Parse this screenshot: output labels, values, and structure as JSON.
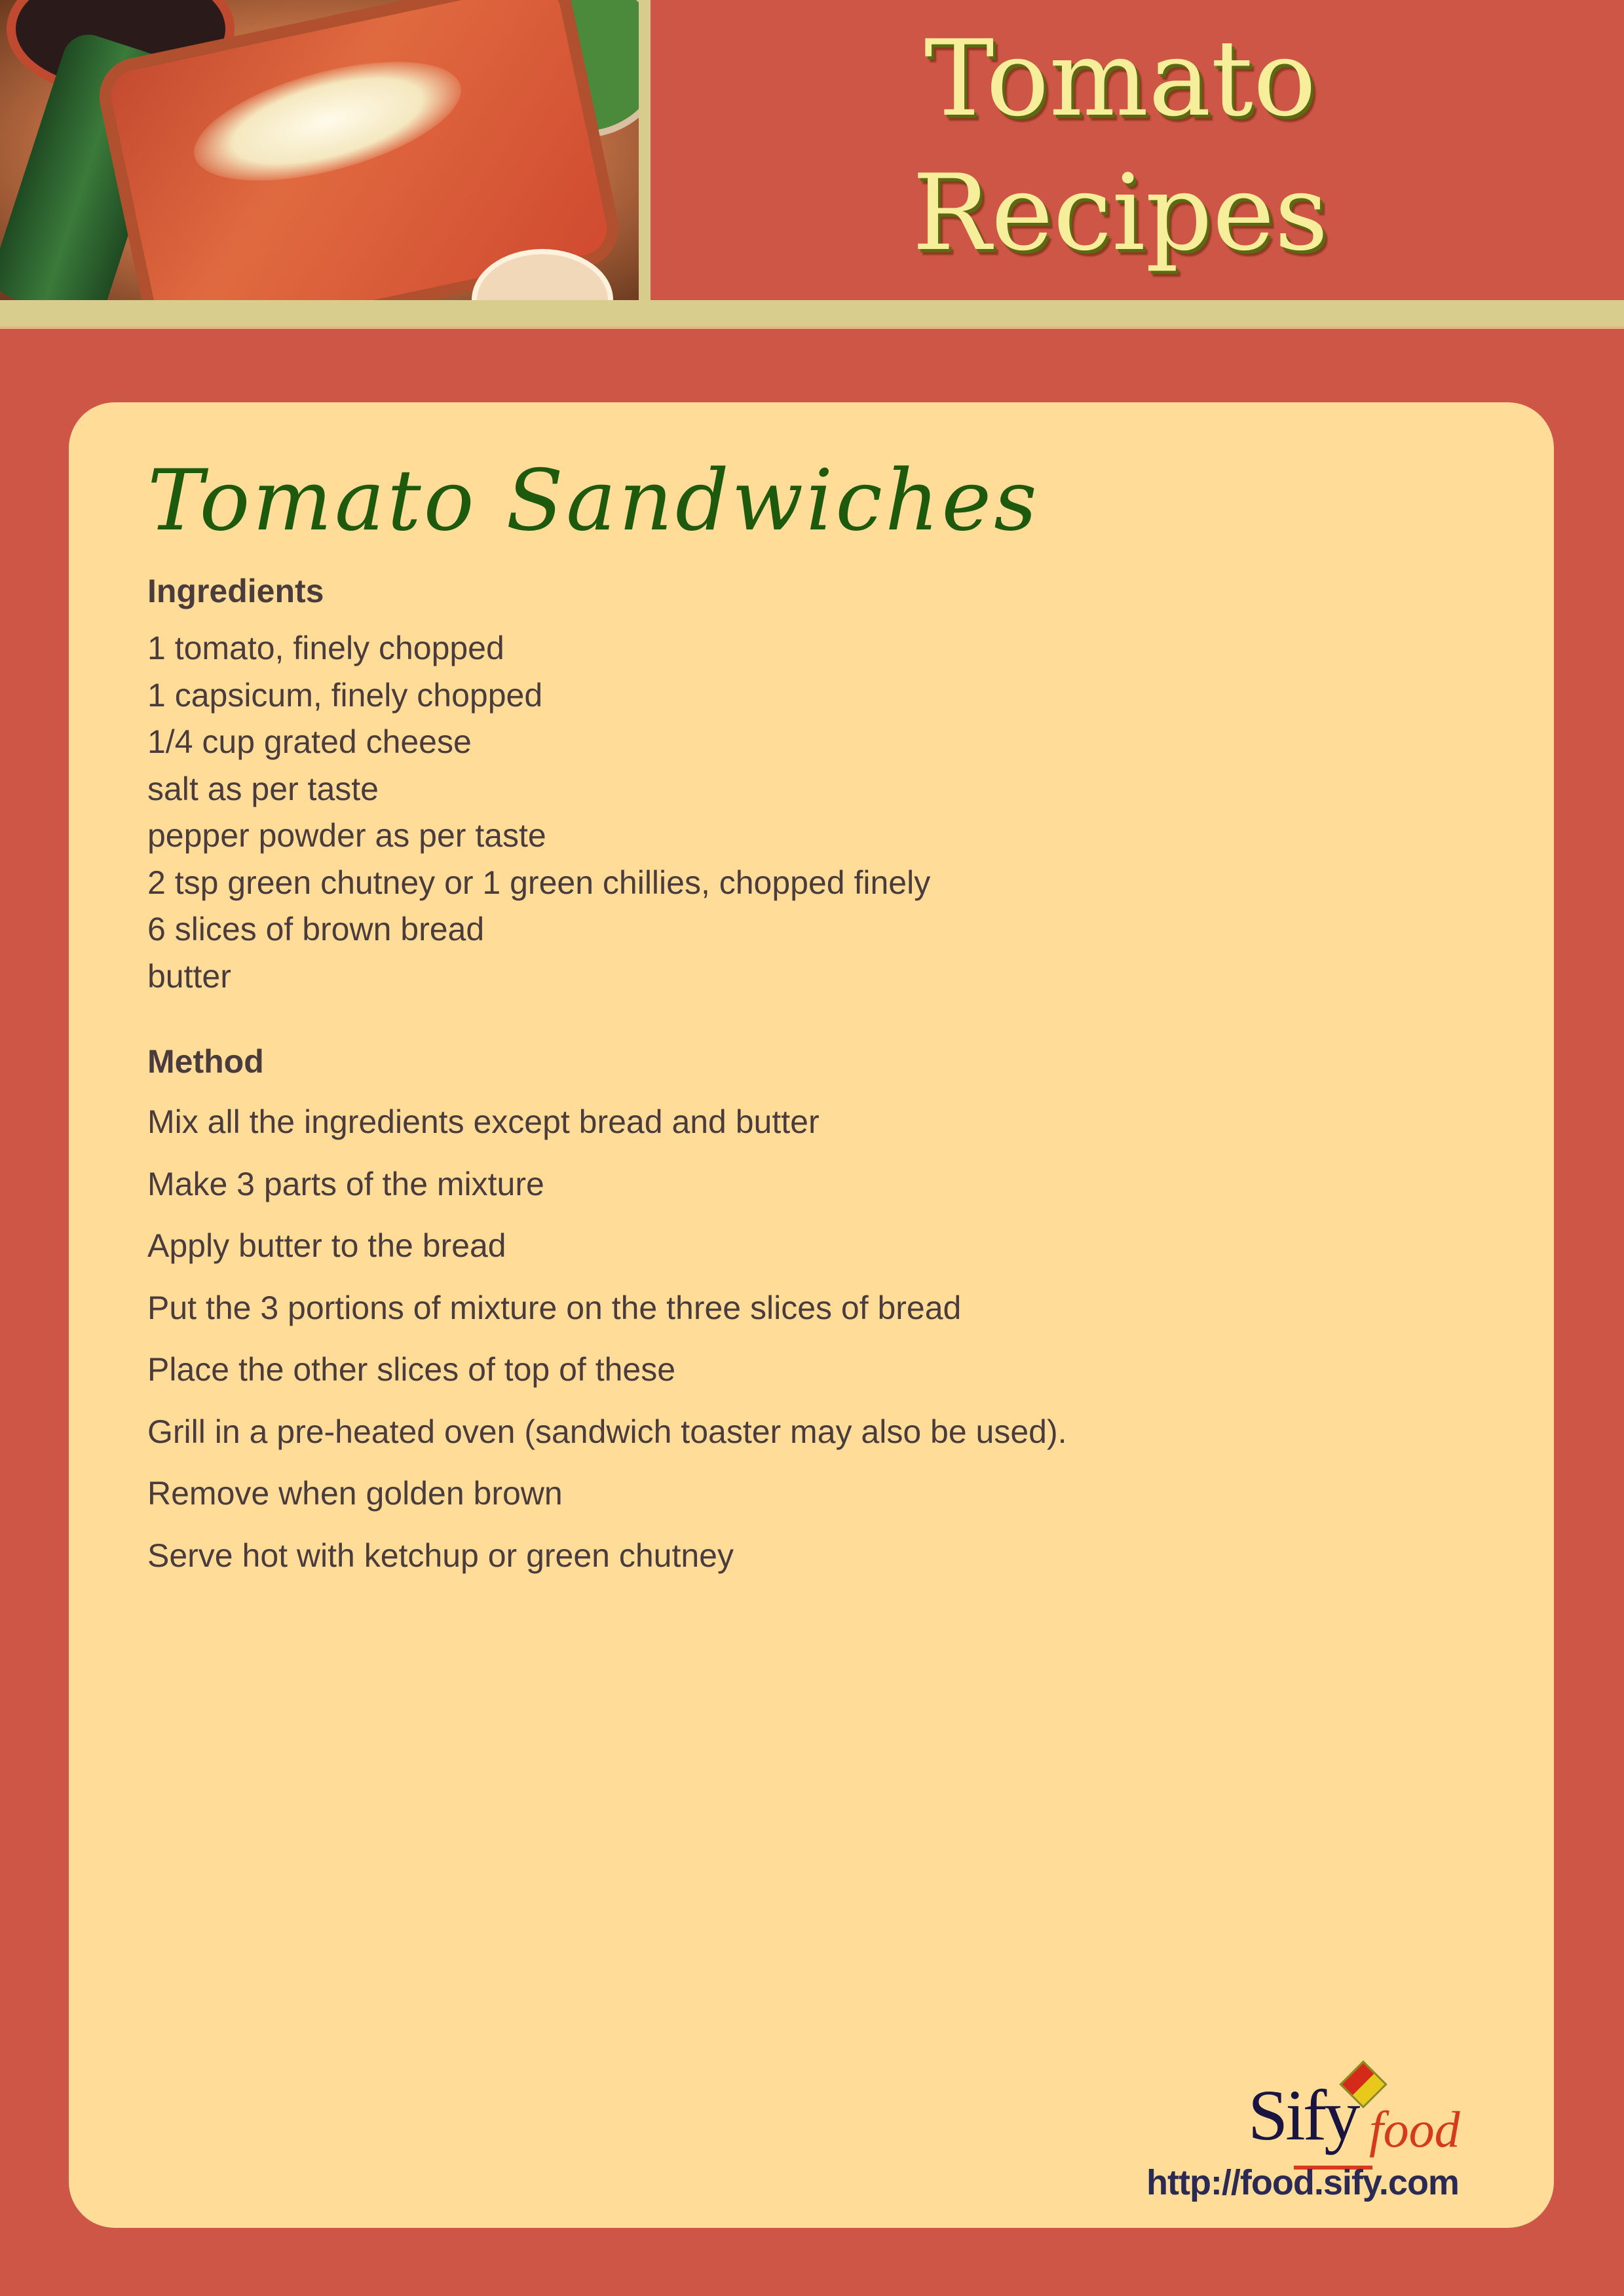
{
  "header": {
    "title_line1": "Tomato",
    "title_line2": "Recipes"
  },
  "recipe": {
    "title": "Tomato Sandwiches",
    "ingredients_heading": "Ingredients",
    "ingredients": [
      "1 tomato, finely chopped",
      "1 capsicum, finely chopped",
      "1/4 cup grated cheese",
      "salt as per taste",
      "pepper powder as per taste",
      "2 tsp green chutney or 1 green chillies, chopped finely",
      "6 slices of brown bread",
      "butter"
    ],
    "method_heading": "Method",
    "method": [
      "Mix all the ingredients except bread and butter",
      "Make 3 parts of the mixture",
      "Apply butter to the bread",
      "Put the 3 portions of mixture on the three slices of bread",
      "Place the other slices of top of these",
      "Grill in a pre-heated oven (sandwich toaster may also be used).",
      "Remove when golden brown",
      "Serve hot with ketchup or green chutney"
    ]
  },
  "footer": {
    "logo_text": "Sify food",
    "logo_brand": "Sify",
    "logo_sub": "food",
    "url": "http://food.sify.com"
  },
  "colors": {
    "background": "#cd5646",
    "card": "#ffdd99",
    "title": "#1d5a0e",
    "text": "#4a3c3c",
    "stripe": "#d9cd8e"
  }
}
